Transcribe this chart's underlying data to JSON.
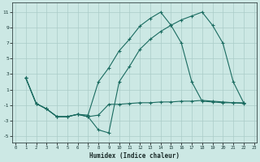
{
  "xlabel": "Humidex (Indice chaleur)",
  "bg_color": "#cce8e4",
  "grid_color": "#aaccc8",
  "line_color": "#1a6b60",
  "xticks": [
    0,
    1,
    2,
    3,
    4,
    5,
    6,
    7,
    8,
    9,
    10,
    11,
    12,
    13,
    14,
    15,
    16,
    17,
    18,
    19,
    20,
    21,
    22,
    23
  ],
  "yticks": [
    -5,
    -3,
    -1,
    1,
    3,
    5,
    7,
    9,
    11
  ],
  "xlim": [
    -0.3,
    23.3
  ],
  "ylim": [
    -5.8,
    12.2
  ],
  "curve1_x": [
    1,
    2,
    3,
    4,
    5,
    6,
    7,
    8,
    9,
    10,
    11,
    12,
    13,
    14,
    15,
    16,
    17,
    18,
    19,
    20,
    21,
    22
  ],
  "curve1_y": [
    2.5,
    -0.8,
    -1.5,
    -2.5,
    -2.5,
    -2.2,
    -2.5,
    -4.2,
    -4.6,
    2.0,
    4.0,
    6.2,
    7.5,
    8.5,
    9.3,
    10.0,
    10.5,
    11.0,
    9.3,
    7.0,
    2.0,
    -0.7
  ],
  "curve2_x": [
    1,
    2,
    3,
    4,
    5,
    6,
    7,
    8,
    9,
    10,
    11,
    12,
    13,
    14,
    15,
    16,
    17,
    18,
    19,
    20,
    21,
    22
  ],
  "curve2_y": [
    2.5,
    -0.8,
    -1.5,
    -2.5,
    -2.5,
    -2.2,
    -2.3,
    2.0,
    3.8,
    6.0,
    7.5,
    9.2,
    10.2,
    11.0,
    9.3,
    7.0,
    2.0,
    -0.5,
    -0.6,
    -0.7,
    -0.7,
    -0.7
  ],
  "curve3_x": [
    1,
    2,
    3,
    4,
    5,
    6,
    7,
    8,
    9,
    10,
    11,
    12,
    13,
    14,
    15,
    16,
    17,
    18,
    19,
    20,
    21,
    22
  ],
  "curve3_y": [
    2.5,
    -0.8,
    -1.5,
    -2.5,
    -2.5,
    -2.2,
    -2.5,
    -2.3,
    -0.9,
    -0.9,
    -0.8,
    -0.7,
    -0.7,
    -0.6,
    -0.6,
    -0.5,
    -0.5,
    -0.4,
    -0.5,
    -0.6,
    -0.7,
    -0.8
  ]
}
